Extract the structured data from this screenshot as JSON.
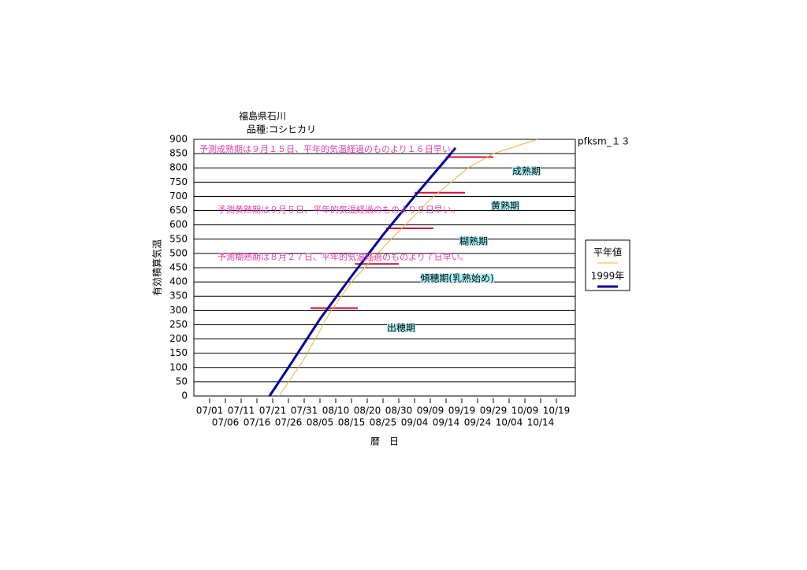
{
  "chart_data": {
    "type": "line",
    "title": "福島県石川",
    "subtitle": "品種:コシヒカリ",
    "code": "pfksm_１３",
    "xlabel": "暦　日",
    "ylabel": "有効積算気温",
    "xlim": [
      0,
      121
    ],
    "xticks": [
      {
        "value": 5,
        "label": "07/01"
      },
      {
        "value": 10,
        "label": "07/06"
      },
      {
        "value": 15,
        "label": "07/11"
      },
      {
        "value": 20,
        "label": "07/16"
      },
      {
        "value": 25,
        "label": "07/21"
      },
      {
        "value": 30,
        "label": "07/26"
      },
      {
        "value": 35,
        "label": "07/31"
      },
      {
        "value": 40,
        "label": "08/05"
      },
      {
        "value": 45,
        "label": "08/10"
      },
      {
        "value": 50,
        "label": "08/15"
      },
      {
        "value": 55,
        "label": "08/20"
      },
      {
        "value": 60,
        "label": "08/25"
      },
      {
        "value": 65,
        "label": "08/30"
      },
      {
        "value": 70,
        "label": "09/04"
      },
      {
        "value": 75,
        "label": "09/09"
      },
      {
        "value": 80,
        "label": "09/14"
      },
      {
        "value": 85,
        "label": "09/19"
      },
      {
        "value": 90,
        "label": "09/24"
      },
      {
        "value": 95,
        "label": "09/29"
      },
      {
        "value": 100,
        "label": "10/04"
      },
      {
        "value": 105,
        "label": "10/09"
      },
      {
        "value": 110,
        "label": "10/14"
      },
      {
        "value": 115,
        "label": "10/19"
      }
    ],
    "ylim": [
      0,
      900
    ],
    "yticks": [
      0,
      50,
      100,
      150,
      200,
      250,
      300,
      350,
      400,
      450,
      500,
      550,
      600,
      650,
      700,
      750,
      800,
      850,
      900
    ],
    "grid": true,
    "series": [
      {
        "name": "平年値",
        "color": "#f0b040",
        "x": [
          27,
          35,
          43,
          50,
          60,
          67,
          75,
          87,
          95,
          109
        ],
        "values": [
          0,
          130,
          290,
          400,
          520,
          600,
          690,
          800,
          850,
          900
        ]
      },
      {
        "name": "1999年",
        "color": "#000099",
        "x": [
          24,
          30,
          40,
          50,
          60,
          70,
          80,
          83
        ],
        "values": [
          0,
          100,
          270,
          420,
          565,
          700,
          830,
          870
        ]
      }
    ],
    "stage_lines": [
      {
        "y": 308,
        "x": [
          37,
          52
        ]
      },
      {
        "y": 463,
        "x": [
          51,
          65
        ]
      },
      {
        "y": 588,
        "x": [
          61,
          76
        ]
      },
      {
        "y": 713,
        "x": [
          70,
          86
        ]
      },
      {
        "y": 838,
        "x": [
          80,
          95
        ]
      }
    ],
    "stages": [
      "出穂期",
      "傾穂期(乳熟始め)",
      "糊熟期",
      "黄熟期",
      "成熟期"
    ],
    "annotations": [
      "予測成熟期は９月１５日、平年的気温経過のものより１６日早い。",
      "予測黄熟期は９月５日、平年的気温経過のものより９日早い。",
      "予測糊熟期は８月２７日、平年的気温経過のものより７日早い。"
    ]
  }
}
